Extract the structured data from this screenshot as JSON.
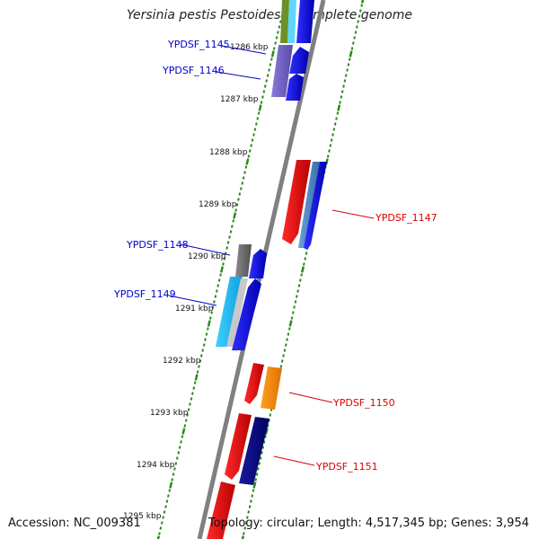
{
  "title": "Yersinia pestis Pestoides F, complete genome",
  "accession": "Accession: NC_009381",
  "topology": "Topology: circular; Length: 4,517,345 bp; Genes: 3,954",
  "colors": {
    "backbone": "#808080",
    "ruler": "#2a8a1a",
    "forward_label": "#0000cc",
    "reverse_label": "#dd0000"
  },
  "ticks": [
    "1286 kbp",
    "1287 kbp",
    "1288 kbp",
    "1289 kbp",
    "1290 kbp",
    "1291 kbp",
    "1292 kbp",
    "1293 kbp",
    "1294 kbp",
    "1295 kbp"
  ],
  "gene_labels": [
    {
      "text": "YPDSF_1145",
      "strand": "forward"
    },
    {
      "text": "YPDSF_1146",
      "strand": "forward"
    },
    {
      "text": "YPDSF_1147",
      "strand": "reverse"
    },
    {
      "text": "YPDSF_1148",
      "strand": "forward"
    },
    {
      "text": "YPDSF_1149",
      "strand": "forward"
    },
    {
      "text": "YPDSF_1150",
      "strand": "reverse"
    },
    {
      "text": "YPDSF_1151",
      "strand": "reverse"
    }
  ]
}
